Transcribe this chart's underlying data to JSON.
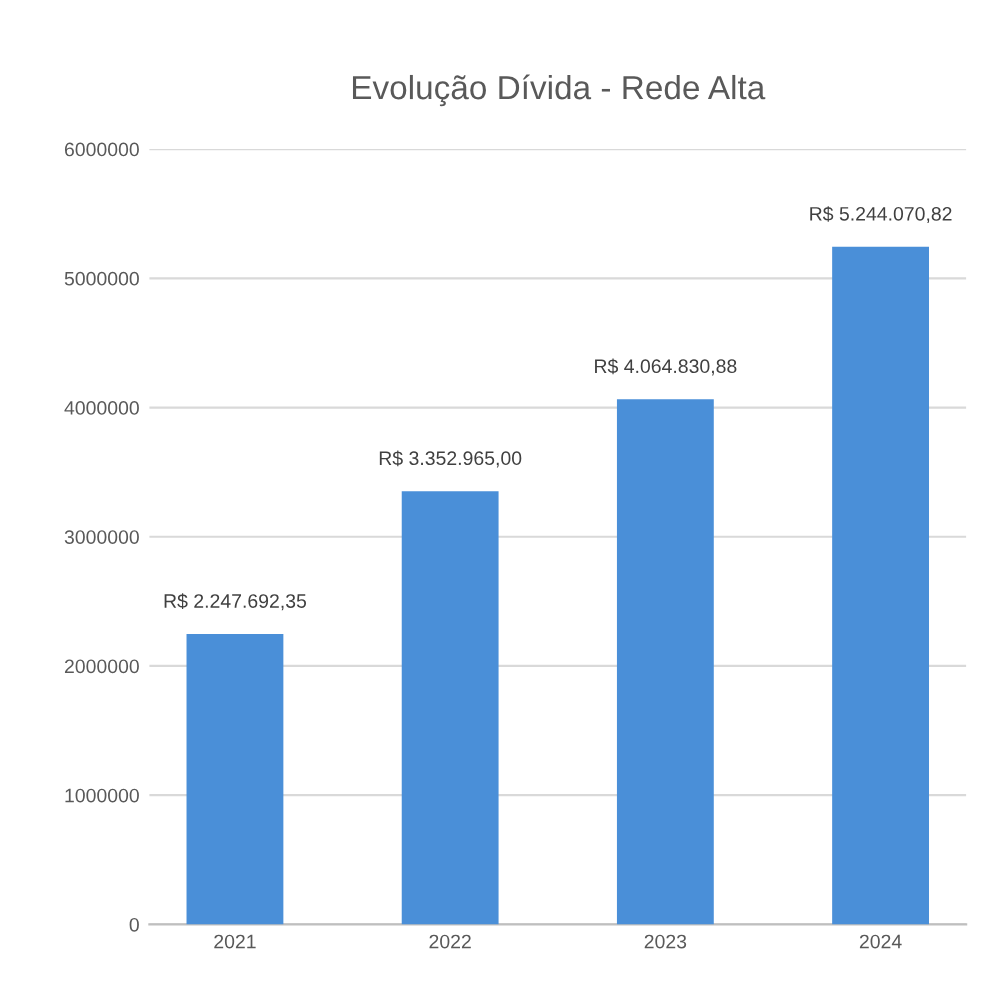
{
  "chart_data": {
    "type": "bar",
    "title": "Evolução Dívida - Rede Alta",
    "categories": [
      "2021",
      "2022",
      "2023",
      "2024"
    ],
    "values": [
      2247692.35,
      3352965.0,
      4064830.88,
      5244070.82
    ],
    "value_labels": [
      "R$ 2.247.692,35",
      "R$ 3.352.965,00",
      "R$ 4.064.830,88",
      "R$ 5.244.070,82"
    ],
    "color": "#4a8fd8",
    "ylim": [
      0,
      6000000
    ],
    "yticks": [
      0,
      1000000,
      2000000,
      3000000,
      4000000,
      5000000,
      6000000
    ],
    "grid": "y"
  }
}
